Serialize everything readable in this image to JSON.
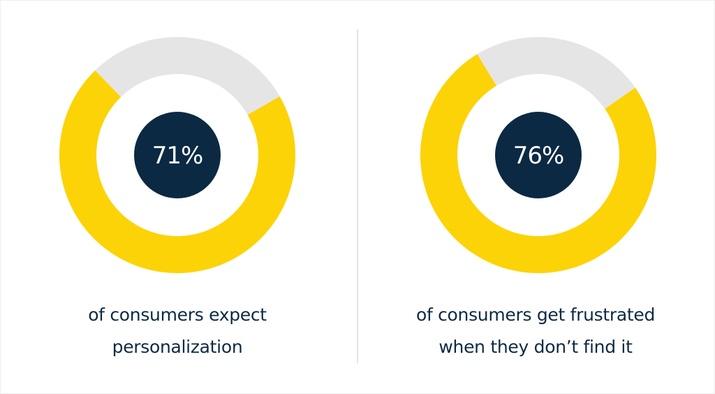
{
  "colors": {
    "filled": "#fcd306",
    "remainder": "#e5e5e5",
    "center": "#0b2942",
    "text": "#0d2a43"
  },
  "chart_data": [
    {
      "type": "pie",
      "style": "donut",
      "value": 71,
      "unit": "%",
      "label": "71%",
      "caption_lines": [
        "of consumers expect",
        "personalization"
      ]
    },
    {
      "type": "pie",
      "style": "donut",
      "value": 76,
      "unit": "%",
      "label": "76%",
      "caption_lines": [
        "of consumers get frustrated",
        "when they don’t find it"
      ]
    }
  ]
}
